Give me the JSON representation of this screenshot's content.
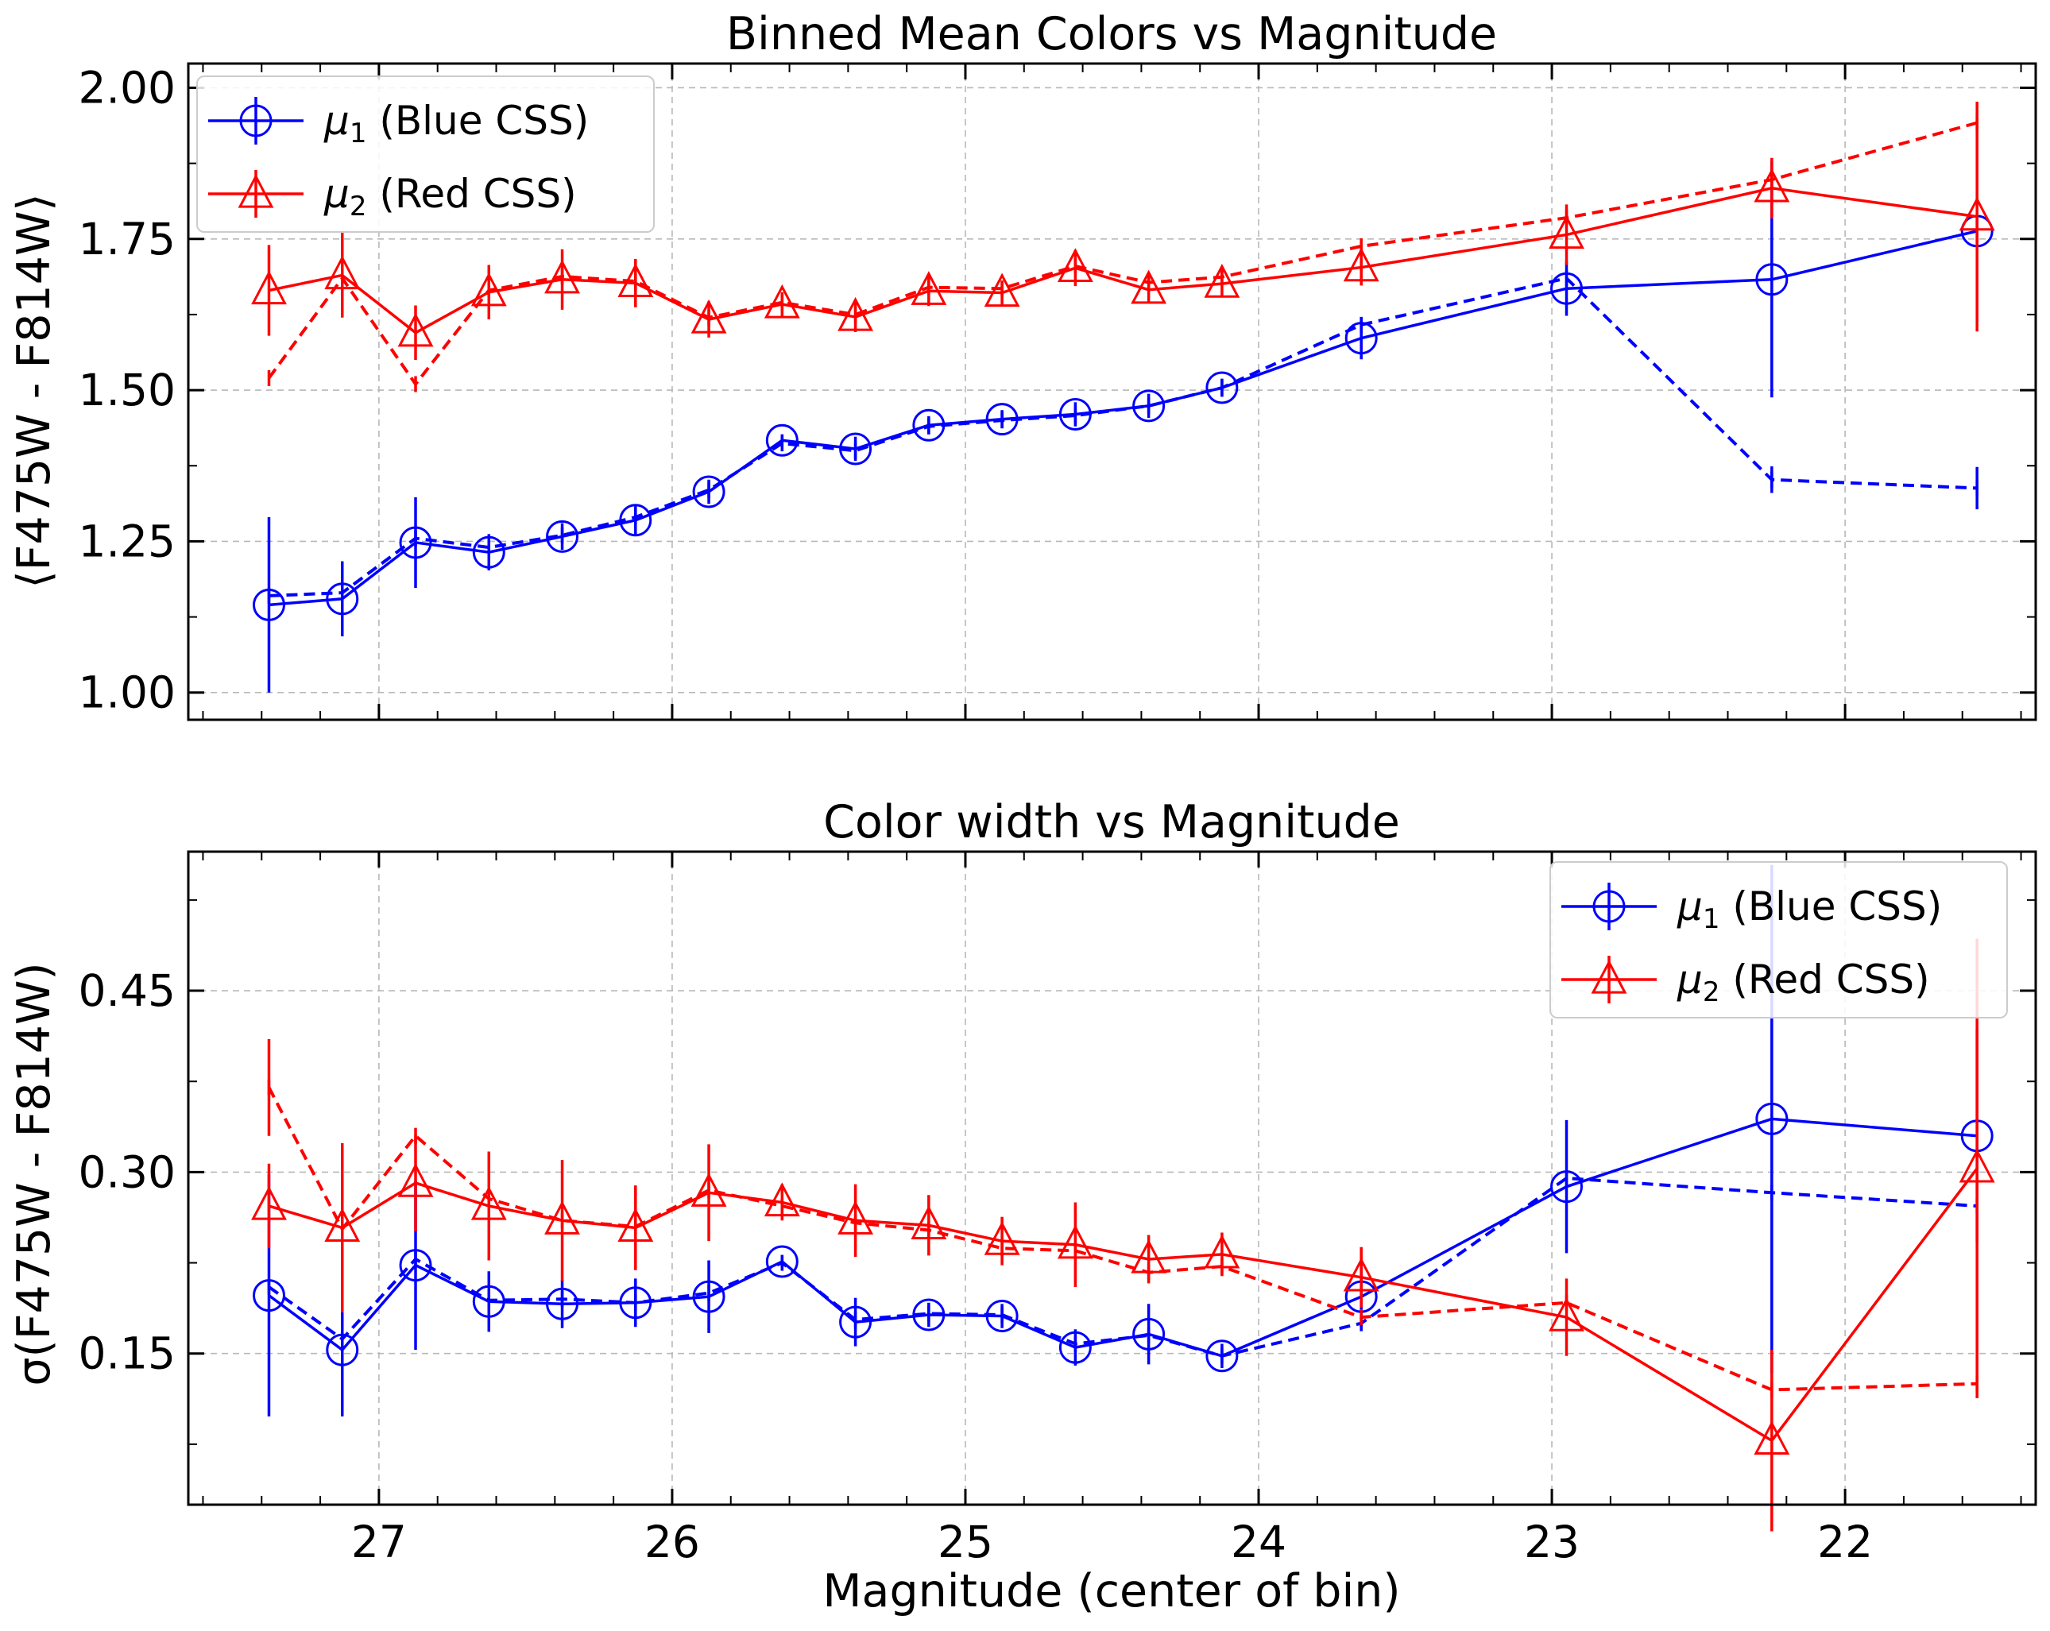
{
  "colors": {
    "blue": "#0000ff",
    "red": "#ff0000",
    "grid": "#b8b8b8"
  },
  "chart_data": [
    {
      "type": "line",
      "title": "Binned Mean Colors vs Magnitude",
      "xlabel": "",
      "ylabel": "⟨F475W - F814W⟩",
      "xlim": [
        27.65,
        21.35
      ],
      "ylim": [
        0.955,
        2.04
      ],
      "x_inverted": true,
      "grid": true,
      "legend_position": "top-left",
      "x_ticks": [],
      "y_ticks": [
        "1.00",
        "1.25",
        "1.50",
        "1.75",
        "2.00"
      ],
      "y_tick_values": [
        1.0,
        1.25,
        1.5,
        1.75,
        2.0
      ],
      "x": [
        27.375,
        27.125,
        26.875,
        26.625,
        26.375,
        26.125,
        25.875,
        25.625,
        25.375,
        25.125,
        24.875,
        24.625,
        24.375,
        24.125,
        23.65,
        22.95,
        22.25,
        21.55
      ],
      "series": [
        {
          "name": "μ1 (Blue CSS)",
          "name_base": "μ",
          "name_sub": "1",
          "name_rest": " (Blue CSS)",
          "color": "#0000ff",
          "marker": "circle",
          "values": [
            1.145,
            1.155,
            1.248,
            1.232,
            1.258,
            1.285,
            1.332,
            1.417,
            1.403,
            1.442,
            1.452,
            1.46,
            1.474,
            1.504,
            1.586,
            1.668,
            1.683,
            1.763
          ],
          "errors": [
            0.145,
            0.062,
            0.075,
            0.03,
            0.022,
            0.025,
            0.02,
            0.01,
            0.02,
            0.015,
            0.015,
            0.02,
            0.02,
            0.015,
            0.035,
            0.045,
            0.195,
            0.02
          ],
          "dashed_values": [
            1.16,
            1.165,
            1.255,
            1.24,
            1.26,
            1.29,
            1.335,
            1.412,
            1.4,
            1.44,
            1.45,
            1.458,
            1.474,
            1.504,
            1.608,
            1.685,
            1.352,
            1.338
          ],
          "dashed_errors": [
            0.0,
            0.0,
            0.0,
            0.0,
            0.0,
            0.0,
            0.0,
            0.0,
            0.0,
            0.0,
            0.0,
            0.0,
            0.0,
            0.0,
            0.0,
            0.0,
            0.022,
            0.035
          ]
        },
        {
          "name": "μ2 (Red CSS)",
          "name_base": "μ",
          "name_sub": "2",
          "name_rest": " (Red CSS)",
          "color": "#ff0000",
          "marker": "triangle",
          "values": [
            1.665,
            1.69,
            1.595,
            1.662,
            1.683,
            1.677,
            1.617,
            1.642,
            1.621,
            1.664,
            1.661,
            1.702,
            1.666,
            1.676,
            1.703,
            1.757,
            1.834,
            1.787
          ],
          "errors": [
            0.075,
            0.07,
            0.045,
            0.045,
            0.05,
            0.04,
            0.03,
            0.02,
            0.025,
            0.025,
            0.02,
            0.03,
            0.02,
            0.02,
            0.03,
            0.05,
            0.05,
            0.19
          ],
          "dashed_values": [
            1.52,
            1.685,
            1.51,
            1.665,
            1.688,
            1.68,
            1.62,
            1.645,
            1.625,
            1.67,
            1.668,
            1.705,
            1.678,
            1.687,
            1.738,
            1.785,
            1.848,
            1.942
          ],
          "dashed_errors": [
            0.0,
            0.0,
            0.0,
            0.0,
            0.0,
            0.0,
            0.0,
            0.0,
            0.0,
            0.0,
            0.0,
            0.0,
            0.0,
            0.0,
            0.0,
            0.0,
            0.0,
            0.0
          ]
        }
      ]
    },
    {
      "type": "line",
      "title": "Color width vs Magnitude",
      "xlabel": "Magnitude (center of bin)",
      "ylabel": "σ(F475W - F814W)",
      "xlim": [
        27.65,
        21.35
      ],
      "ylim": [
        0.025,
        0.565
      ],
      "x_inverted": true,
      "grid": true,
      "legend_position": "top-right",
      "x_ticks": [
        "27",
        "26",
        "25",
        "24",
        "23",
        "22"
      ],
      "x_tick_values": [
        27,
        26,
        25,
        24,
        23,
        22
      ],
      "y_ticks": [
        "0.15",
        "0.30",
        "0.45"
      ],
      "y_tick_values": [
        0.15,
        0.3,
        0.45
      ],
      "x": [
        27.375,
        27.125,
        26.875,
        26.625,
        26.375,
        26.125,
        25.875,
        25.625,
        25.375,
        25.125,
        24.875,
        24.625,
        24.375,
        24.125,
        23.65,
        22.95,
        22.25,
        21.55
      ],
      "series": [
        {
          "name": "μ1 (Blue CSS)",
          "name_base": "μ",
          "name_sub": "1",
          "name_rest": " (Blue CSS)",
          "color": "#0000ff",
          "marker": "circle",
          "values": [
            0.198,
            0.153,
            0.223,
            0.193,
            0.191,
            0.192,
            0.197,
            0.226,
            0.176,
            0.182,
            0.181,
            0.155,
            0.166,
            0.148,
            0.197,
            0.288,
            0.344,
            0.33
          ],
          "errors": [
            0.1,
            0.055,
            0.07,
            0.025,
            0.02,
            0.02,
            0.03,
            0.005,
            0.02,
            0.01,
            0.01,
            0.015,
            0.025,
            0.01,
            0.025,
            0.055,
            0.21,
            0.088
          ],
          "dashed_values": [
            0.205,
            0.162,
            0.228,
            0.194,
            0.195,
            0.192,
            0.2,
            0.225,
            0.178,
            0.183,
            0.182,
            0.158,
            0.165,
            0.148,
            0.175,
            0.295,
            0.283,
            0.272
          ],
          "dashed_errors": [
            0.0,
            0.0,
            0.0,
            0.0,
            0.0,
            0.0,
            0.0,
            0.0,
            0.0,
            0.0,
            0.0,
            0.0,
            0.0,
            0.0,
            0.0,
            0.0,
            0.0,
            0.0
          ]
        },
        {
          "name": "μ2 (Red CSS)",
          "name_base": "μ",
          "name_sub": "2",
          "name_rest": " (Red CSS)",
          "color": "#ff0000",
          "marker": "triangle",
          "values": [
            0.272,
            0.254,
            0.291,
            0.272,
            0.26,
            0.254,
            0.283,
            0.275,
            0.26,
            0.256,
            0.243,
            0.24,
            0.228,
            0.232,
            0.213,
            0.18,
            0.078,
            0.303
          ],
          "errors": [
            0.035,
            0.07,
            0.04,
            0.045,
            0.05,
            0.035,
            0.04,
            0.015,
            0.03,
            0.025,
            0.02,
            0.035,
            0.02,
            0.018,
            0.025,
            0.032,
            0.075,
            0.19
          ],
          "dashed_values": [
            0.37,
            0.253,
            0.33,
            0.278,
            0.26,
            0.255,
            0.285,
            0.272,
            0.258,
            0.252,
            0.237,
            0.235,
            0.217,
            0.222,
            0.18,
            0.192,
            0.12,
            0.125
          ],
          "dashed_errors": [
            0.04,
            0.0,
            0.0,
            0.0,
            0.0,
            0.0,
            0.0,
            0.0,
            0.0,
            0.0,
            0.0,
            0.0,
            0.0,
            0.0,
            0.0,
            0.0,
            0.0,
            0.0
          ]
        }
      ]
    }
  ]
}
